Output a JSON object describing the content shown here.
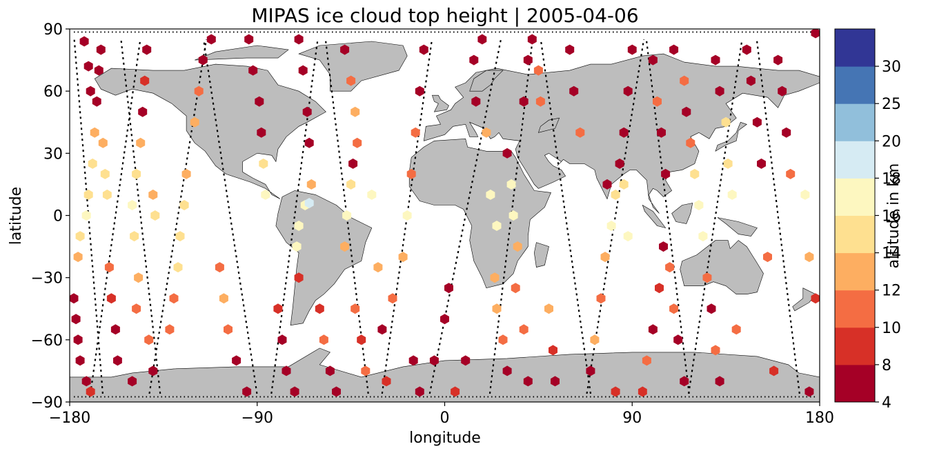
{
  "chart_data": {
    "type": "scatter",
    "title": "MIPAS ice cloud top height | 2005-04-06",
    "xlabel": "longitude",
    "ylabel": "latitude",
    "xlim": [
      -180,
      180
    ],
    "ylim": [
      -90,
      90
    ],
    "xticks": [
      -180,
      -90,
      0,
      90,
      180
    ],
    "yticks": [
      90,
      60,
      30,
      0,
      -30,
      -60,
      -90
    ],
    "xtick_labels": [
      "−180",
      "−90",
      "0",
      "90",
      "180"
    ],
    "ytick_labels": [
      "90",
      "60",
      "30",
      "0",
      "−30",
      "−60",
      "−90"
    ],
    "grid": false,
    "background_map": "world coastlines, land filled grey",
    "colors": {
      "land": "#bdbdbd",
      "coast": "#000000",
      "track": "#000000"
    },
    "colorbar": {
      "label": "altitude in km",
      "bounds": [
        4,
        8,
        10,
        12,
        14,
        16,
        18,
        20,
        25,
        30
      ],
      "tick_labels": [
        "4",
        "8",
        "10",
        "12",
        "14",
        "16",
        "18",
        "20",
        "25",
        "30"
      ],
      "colors": [
        "#a50026",
        "#d73027",
        "#f46d43",
        "#fdae61",
        "#fee090",
        "#fdf7c0",
        "#d6ebf3",
        "#91bfdb",
        "#4575b4",
        "#313695"
      ]
    },
    "marker": "hexagon",
    "orbits": [
      {
        "name": "o1",
        "lon0": -171,
        "slope": -0.08,
        "lat_min": -86,
        "lat_max": 87
      },
      {
        "name": "o2",
        "lon0": -158,
        "slope": 0.14,
        "lat_min": -86,
        "lat_max": 87
      },
      {
        "name": "o3",
        "lon0": -146,
        "slope": -0.11,
        "lat_min": -86,
        "lat_max": 87
      },
      {
        "name": "o4",
        "lon0": -128,
        "slope": 0.16,
        "lat_min": -86,
        "lat_max": 87
      },
      {
        "name": "o5",
        "lon0": -103,
        "slope": -0.15,
        "lat_min": -86,
        "lat_max": 87
      },
      {
        "name": "o6",
        "lon0": -72,
        "slope": 0.13,
        "lat_min": -86,
        "lat_max": 87
      },
      {
        "name": "o7",
        "lon0": -47,
        "slope": -0.12,
        "lat_min": -86,
        "lat_max": 87
      },
      {
        "name": "o8",
        "lon0": -18,
        "slope": 0.14,
        "lat_min": -86,
        "lat_max": 87
      },
      {
        "name": "o9",
        "lon0": 10,
        "slope": 0.2,
        "lat_min": -86,
        "lat_max": 87
      },
      {
        "name": "o10",
        "lon0": 32,
        "slope": 0.12,
        "lat_min": -86,
        "lat_max": 87
      },
      {
        "name": "o11",
        "lon0": 58,
        "slope": -0.14,
        "lat_min": -86,
        "lat_max": 87
      },
      {
        "name": "o12",
        "lon0": 82,
        "slope": 0.16,
        "lat_min": -86,
        "lat_max": 87
      },
      {
        "name": "o13",
        "lon0": 107,
        "slope": -0.12,
        "lat_min": -86,
        "lat_max": 87
      },
      {
        "name": "o14",
        "lon0": 130,
        "slope": 0.15,
        "lat_min": -86,
        "lat_max": 87
      },
      {
        "name": "o15",
        "lon0": 160,
        "slope": -0.12,
        "lat_min": -86,
        "lat_max": 87
      }
    ],
    "points": [
      {
        "lon": -178,
        "lat": -40,
        "alt": 6
      },
      {
        "lon": -177,
        "lat": -50,
        "alt": 7
      },
      {
        "lon": -176,
        "lat": -60,
        "alt": 6
      },
      {
        "lon": -175,
        "lat": -70,
        "alt": 6
      },
      {
        "lon": -172,
        "lat": -80,
        "alt": 7
      },
      {
        "lon": -170,
        "lat": -85,
        "alt": 9
      },
      {
        "lon": -176,
        "lat": -20,
        "alt": 13
      },
      {
        "lon": -175,
        "lat": -10,
        "alt": 15
      },
      {
        "lon": -172,
        "lat": 0,
        "alt": 16
      },
      {
        "lon": -171,
        "lat": 10,
        "alt": 15
      },
      {
        "lon": -169,
        "lat": 25,
        "alt": 15
      },
      {
        "lon": -168,
        "lat": 40,
        "alt": 12
      },
      {
        "lon": -167,
        "lat": 55,
        "alt": 6
      },
      {
        "lon": -166,
        "lat": 70,
        "alt": 6
      },
      {
        "lon": -165,
        "lat": 80,
        "alt": 6
      },
      {
        "lon": -173,
        "lat": 84,
        "alt": 6
      },
      {
        "lon": -171,
        "lat": 72,
        "alt": 6
      },
      {
        "lon": -170,
        "lat": 60,
        "alt": 6
      },
      {
        "lon": -164,
        "lat": 35,
        "alt": 13
      },
      {
        "lon": -163,
        "lat": 20,
        "alt": 15
      },
      {
        "lon": -162,
        "lat": 10,
        "alt": 14
      },
      {
        "lon": -161,
        "lat": -25,
        "alt": 11
      },
      {
        "lon": -160,
        "lat": -40,
        "alt": 8
      },
      {
        "lon": -158,
        "lat": -55,
        "alt": 6
      },
      {
        "lon": -157,
        "lat": -70,
        "alt": 6
      },
      {
        "lon": -150,
        "lat": -80,
        "alt": 7
      },
      {
        "lon": -149,
        "lat": -10,
        "alt": 15
      },
      {
        "lon": -150,
        "lat": 5,
        "alt": 16
      },
      {
        "lon": -148,
        "lat": 20,
        "alt": 14
      },
      {
        "lon": -146,
        "lat": 35,
        "alt": 12
      },
      {
        "lon": -145,
        "lat": 50,
        "alt": 6
      },
      {
        "lon": -144,
        "lat": 65,
        "alt": 9
      },
      {
        "lon": -143,
        "lat": 80,
        "alt": 6
      },
      {
        "lon": -147,
        "lat": -30,
        "alt": 12
      },
      {
        "lon": -148,
        "lat": -45,
        "alt": 11
      },
      {
        "lon": -142,
        "lat": -60,
        "alt": 10
      },
      {
        "lon": -140,
        "lat": -75,
        "alt": 6
      },
      {
        "lon": -140,
        "lat": 10,
        "alt": 13
      },
      {
        "lon": -139,
        "lat": 0,
        "alt": 14
      },
      {
        "lon": -132,
        "lat": -55,
        "alt": 11
      },
      {
        "lon": -130,
        "lat": -40,
        "alt": 10
      },
      {
        "lon": -128,
        "lat": -25,
        "alt": 15
      },
      {
        "lon": -127,
        "lat": -10,
        "alt": 15
      },
      {
        "lon": -125,
        "lat": 5,
        "alt": 15
      },
      {
        "lon": -124,
        "lat": 20,
        "alt": 13
      },
      {
        "lon": -120,
        "lat": 45,
        "alt": 12
      },
      {
        "lon": -118,
        "lat": 60,
        "alt": 11
      },
      {
        "lon": -116,
        "lat": 75,
        "alt": 6
      },
      {
        "lon": -112,
        "lat": 85,
        "alt": 6
      },
      {
        "lon": -108,
        "lat": -25,
        "alt": 10
      },
      {
        "lon": -106,
        "lat": -40,
        "alt": 13
      },
      {
        "lon": -104,
        "lat": -55,
        "alt": 10
      },
      {
        "lon": -100,
        "lat": -70,
        "alt": 6
      },
      {
        "lon": -95,
        "lat": -85,
        "alt": 6
      },
      {
        "lon": -94,
        "lat": 85,
        "alt": 6
      },
      {
        "lon": -92,
        "lat": 70,
        "alt": 6
      },
      {
        "lon": -89,
        "lat": 55,
        "alt": 6
      },
      {
        "lon": -88,
        "lat": 40,
        "alt": 6
      },
      {
        "lon": -87,
        "lat": 25,
        "alt": 15
      },
      {
        "lon": -86,
        "lat": 10,
        "alt": 16
      },
      {
        "lon": -80,
        "lat": -45,
        "alt": 9
      },
      {
        "lon": -78,
        "lat": -60,
        "alt": 6
      },
      {
        "lon": -76,
        "lat": -75,
        "alt": 6
      },
      {
        "lon": -72,
        "lat": -85,
        "alt": 6
      },
      {
        "lon": -70,
        "lat": 85,
        "alt": 6
      },
      {
        "lon": -68,
        "lat": 70,
        "alt": 6
      },
      {
        "lon": -66,
        "lat": 50,
        "alt": 6
      },
      {
        "lon": -65,
        "lat": 35,
        "alt": 6
      },
      {
        "lon": -64,
        "lat": 15,
        "alt": 12
      },
      {
        "lon": -67,
        "lat": 5,
        "alt": 17
      },
      {
        "lon": -70,
        "lat": -5,
        "alt": 17
      },
      {
        "lon": -71,
        "lat": -15,
        "alt": 17
      },
      {
        "lon": -70,
        "lat": -30,
        "alt": 9
      },
      {
        "lon": -65,
        "lat": 6,
        "alt": 19
      },
      {
        "lon": -60,
        "lat": -45,
        "alt": 9
      },
      {
        "lon": -58,
        "lat": -60,
        "alt": 10
      },
      {
        "lon": -55,
        "lat": -75,
        "alt": 6
      },
      {
        "lon": -52,
        "lat": -85,
        "alt": 7
      },
      {
        "lon": -48,
        "lat": 80,
        "alt": 6
      },
      {
        "lon": -45,
        "lat": 65,
        "alt": 11
      },
      {
        "lon": -43,
        "lat": 50,
        "alt": 13
      },
      {
        "lon": -42,
        "lat": 35,
        "alt": 11
      },
      {
        "lon": -44,
        "lat": 25,
        "alt": 6
      },
      {
        "lon": -45,
        "lat": 15,
        "alt": 15
      },
      {
        "lon": -47,
        "lat": 0,
        "alt": 17
      },
      {
        "lon": -48,
        "lat": -15,
        "alt": 13
      },
      {
        "lon": -43,
        "lat": -45,
        "alt": 11
      },
      {
        "lon": -40,
        "lat": -60,
        "alt": 9
      },
      {
        "lon": -38,
        "lat": -75,
        "alt": 10
      },
      {
        "lon": -35,
        "lat": 10,
        "alt": 17
      },
      {
        "lon": -32,
        "lat": -25,
        "alt": 12
      },
      {
        "lon": -30,
        "lat": -55,
        "alt": 7
      },
      {
        "lon": -28,
        "lat": -80,
        "alt": 9
      },
      {
        "lon": -25,
        "lat": -40,
        "alt": 10
      },
      {
        "lon": -20,
        "lat": -20,
        "alt": 13
      },
      {
        "lon": -18,
        "lat": 0,
        "alt": 17
      },
      {
        "lon": -16,
        "lat": 20,
        "alt": 11
      },
      {
        "lon": -14,
        "lat": 40,
        "alt": 11
      },
      {
        "lon": -12,
        "lat": 60,
        "alt": 6
      },
      {
        "lon": -10,
        "lat": 80,
        "alt": 6
      },
      {
        "lon": -15,
        "lat": -70,
        "alt": 6
      },
      {
        "lon": -12,
        "lat": -85,
        "alt": 6
      },
      {
        "lon": -5,
        "lat": -70,
        "alt": 6
      },
      {
        "lon": 0,
        "lat": -50,
        "alt": 6
      },
      {
        "lon": 2,
        "lat": -35,
        "alt": 6
      },
      {
        "lon": 5,
        "lat": -85,
        "alt": 8
      },
      {
        "lon": 10,
        "lat": -70,
        "alt": 6
      },
      {
        "lon": 15,
        "lat": 55,
        "alt": 7
      },
      {
        "lon": 14,
        "lat": 75,
        "alt": 6
      },
      {
        "lon": 18,
        "lat": 85,
        "alt": 6
      },
      {
        "lon": 20,
        "lat": 40,
        "alt": 12
      },
      {
        "lon": 22,
        "lat": 10,
        "alt": 17
      },
      {
        "lon": 25,
        "lat": -5,
        "alt": 17
      },
      {
        "lon": 24,
        "lat": -30,
        "alt": 12
      },
      {
        "lon": 25,
        "lat": -45,
        "alt": 13
      },
      {
        "lon": 28,
        "lat": -60,
        "alt": 10
      },
      {
        "lon": 30,
        "lat": -75,
        "alt": 6
      },
      {
        "lon": 30,
        "lat": 30,
        "alt": 6
      },
      {
        "lon": 32,
        "lat": 15,
        "alt": 17
      },
      {
        "lon": 33,
        "lat": 0,
        "alt": 17
      },
      {
        "lon": 35,
        "lat": -15,
        "alt": 13
      },
      {
        "lon": 34,
        "lat": -35,
        "alt": 10
      },
      {
        "lon": 38,
        "lat": -55,
        "alt": 11
      },
      {
        "lon": 40,
        "lat": -80,
        "alt": 7
      },
      {
        "lon": 38,
        "lat": 55,
        "alt": 6
      },
      {
        "lon": 40,
        "lat": 75,
        "alt": 6
      },
      {
        "lon": 42,
        "lat": 85,
        "alt": 6
      },
      {
        "lon": 45,
        "lat": 70,
        "alt": 11
      },
      {
        "lon": 46,
        "lat": 55,
        "alt": 11
      },
      {
        "lon": 50,
        "lat": -45,
        "alt": 12
      },
      {
        "lon": 52,
        "lat": -65,
        "alt": 9
      },
      {
        "lon": 53,
        "lat": -80,
        "alt": 6
      },
      {
        "lon": 60,
        "lat": 80,
        "alt": 6
      },
      {
        "lon": 62,
        "lat": 60,
        "alt": 6
      },
      {
        "lon": 65,
        "lat": 40,
        "alt": 11
      },
      {
        "lon": 70,
        "lat": -75,
        "alt": 6
      },
      {
        "lon": 72,
        "lat": -60,
        "alt": 12
      },
      {
        "lon": 75,
        "lat": -40,
        "alt": 11
      },
      {
        "lon": 77,
        "lat": -20,
        "alt": 12
      },
      {
        "lon": 80,
        "lat": -5,
        "alt": 17
      },
      {
        "lon": 82,
        "lat": 10,
        "alt": 15
      },
      {
        "lon": 84,
        "lat": 25,
        "alt": 6
      },
      {
        "lon": 86,
        "lat": 40,
        "alt": 6
      },
      {
        "lon": 88,
        "lat": 60,
        "alt": 6
      },
      {
        "lon": 90,
        "lat": 80,
        "alt": 6
      },
      {
        "lon": 86,
        "lat": 15,
        "alt": 15
      },
      {
        "lon": 88,
        "lat": -10,
        "alt": 16
      },
      {
        "lon": 78,
        "lat": 15,
        "alt": 6
      },
      {
        "lon": 82,
        "lat": -85,
        "alt": 8
      },
      {
        "lon": 100,
        "lat": 75,
        "alt": 6
      },
      {
        "lon": 102,
        "lat": 55,
        "alt": 11
      },
      {
        "lon": 104,
        "lat": 40,
        "alt": 6
      },
      {
        "lon": 106,
        "lat": 20,
        "alt": 6
      },
      {
        "lon": 105,
        "lat": -15,
        "alt": 6
      },
      {
        "lon": 103,
        "lat": -35,
        "alt": 9
      },
      {
        "lon": 100,
        "lat": -55,
        "alt": 6
      },
      {
        "lon": 97,
        "lat": -70,
        "alt": 10
      },
      {
        "lon": 95,
        "lat": -85,
        "alt": 8
      },
      {
        "lon": 108,
        "lat": -25,
        "alt": 10
      },
      {
        "lon": 110,
        "lat": -45,
        "alt": 10
      },
      {
        "lon": 112,
        "lat": -60,
        "alt": 6
      },
      {
        "lon": 115,
        "lat": -80,
        "alt": 6
      },
      {
        "lon": 110,
        "lat": 80,
        "alt": 6
      },
      {
        "lon": 115,
        "lat": 65,
        "alt": 10
      },
      {
        "lon": 116,
        "lat": 50,
        "alt": 6
      },
      {
        "lon": 118,
        "lat": 35,
        "alt": 11
      },
      {
        "lon": 120,
        "lat": 20,
        "alt": 15
      },
      {
        "lon": 122,
        "lat": 5,
        "alt": 16
      },
      {
        "lon": 124,
        "lat": -10,
        "alt": 16
      },
      {
        "lon": 126,
        "lat": -30,
        "alt": 10
      },
      {
        "lon": 128,
        "lat": -45,
        "alt": 7
      },
      {
        "lon": 130,
        "lat": -65,
        "alt": 10
      },
      {
        "lon": 132,
        "lat": -80,
        "alt": 6
      },
      {
        "lon": 130,
        "lat": 75,
        "alt": 6
      },
      {
        "lon": 132,
        "lat": 60,
        "alt": 6
      },
      {
        "lon": 135,
        "lat": 45,
        "alt": 14
      },
      {
        "lon": 136,
        "lat": 25,
        "alt": 15
      },
      {
        "lon": 138,
        "lat": 10,
        "alt": 16
      },
      {
        "lon": 140,
        "lat": -55,
        "alt": 11
      },
      {
        "lon": 145,
        "lat": 80,
        "alt": 6
      },
      {
        "lon": 147,
        "lat": 65,
        "alt": 6
      },
      {
        "lon": 150,
        "lat": 45,
        "alt": 6
      },
      {
        "lon": 152,
        "lat": 25,
        "alt": 6
      },
      {
        "lon": 155,
        "lat": -20,
        "alt": 10
      },
      {
        "lon": 158,
        "lat": -75,
        "alt": 8
      },
      {
        "lon": 160,
        "lat": 75,
        "alt": 6
      },
      {
        "lon": 162,
        "lat": 60,
        "alt": 6
      },
      {
        "lon": 164,
        "lat": 40,
        "alt": 6
      },
      {
        "lon": 166,
        "lat": 20,
        "alt": 11
      },
      {
        "lon": 173,
        "lat": 10,
        "alt": 17
      },
      {
        "lon": 175,
        "lat": -20,
        "alt": 13
      },
      {
        "lon": 178,
        "lat": -40,
        "alt": 9
      },
      {
        "lon": 175,
        "lat": -85,
        "alt": 6
      },
      {
        "lon": 178,
        "lat": 88,
        "alt": 6
      }
    ]
  }
}
